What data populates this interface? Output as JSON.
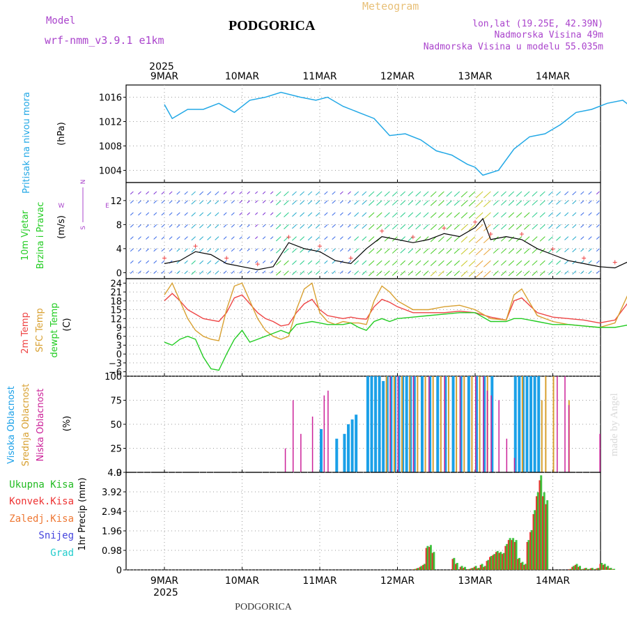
{
  "header": {
    "model_label": "Model",
    "model_name": "wrf-nmm_v3.9.1  e1km",
    "title": "PODGORICA",
    "product": "Meteogram",
    "lonlat": "lon,lat (19.25E, 42.39N)",
    "elevation": "Nadmorska Visina 49m",
    "model_elevation": "Nadmorska Visina u modelu 55.035m",
    "footer_title": "PODGORICA",
    "credit": "made by Angel",
    "year": "2025",
    "days": [
      "9MAR",
      "10MAR",
      "11MAR",
      "12MAR",
      "13MAR",
      "14MAR"
    ]
  },
  "colors": {
    "pressure": "#22a8e6",
    "temp2m": "#ee4444",
    "sfc": "#d8a030",
    "dewpt": "#22cc22",
    "cloud_high": "#1aa0e8",
    "cloud_mid": "#d8a030",
    "cloud_low": "#cc2299",
    "precip_total": "#22bb22",
    "precip_conv": "#ee3333",
    "snow": "#4444dd",
    "hail": "#22cccc",
    "wind_dir": "#aa44cc",
    "grid": "#999999"
  },
  "panels": {
    "pressure": {
      "ylabel_1": "Pritisak na nivou mora",
      "unit": "(hPa)"
    },
    "wind": {
      "ylabel_1": "10m Vjetar",
      "ylabel_2": "Brzina i Pravac",
      "unit": "(m/s)",
      "dir_n": "N",
      "dir_e": "E",
      "dir_w": "W",
      "dir_s": "S"
    },
    "temp": {
      "ylabel_1": "2m Temp",
      "ylabel_2": "SFC Temp",
      "ylabel_3": "dewpt Temp",
      "unit": "(C)"
    },
    "cloud": {
      "ylabel_1": "Visoka Oblacnost",
      "ylabel_2": "Srednja Oblacnost",
      "ylabel_3": "Niska Oblacnost",
      "unit": "(%)"
    },
    "precip": {
      "ylabel": "1hr Precip (mm)",
      "legend": [
        "Ukupna Kisa",
        "Konvek.Kisa",
        "Zaledj.Kisa",
        "Snijeg",
        "Grad"
      ]
    }
  },
  "chart_data": [
    {
      "type": "line",
      "name": "pressure",
      "ylabel": "Pritisak na nivou mora (hPa)",
      "yticks": [
        1004,
        1008,
        1012,
        1016
      ],
      "ylim": [
        1002,
        1018
      ],
      "x_days": [
        0,
        0.1,
        0.3,
        0.5,
        0.7,
        0.9,
        1.1,
        1.3,
        1.5,
        1.75,
        1.95,
        2.1,
        2.3,
        2.5,
        2.7,
        2.9,
        3.1,
        3.3,
        3.5,
        3.7,
        3.9,
        4.0,
        4.1,
        4.3,
        4.5,
        4.7,
        4.9,
        5.1,
        5.3,
        5.5,
        5.7,
        5.9,
        6.0,
        6.1
      ],
      "y": [
        1014.8,
        1012.5,
        1014.0,
        1014.0,
        1015.0,
        1013.5,
        1015.5,
        1016.0,
        1016.8,
        1016.0,
        1015.5,
        1016.0,
        1014.5,
        1013.5,
        1012.5,
        1009.7,
        1010.0,
        1009.0,
        1007.2,
        1006.5,
        1005.0,
        1004.5,
        1003.2,
        1004.0,
        1007.5,
        1009.5,
        1010.0,
        1011.5,
        1013.5,
        1014.0,
        1015.0,
        1015.5,
        1014.5,
        1013.3
      ]
    },
    {
      "type": "line",
      "name": "wind",
      "ylabel": "10m Vjetar Brzina i Pravac (m/s)",
      "yticks": [
        0,
        4,
        8,
        12
      ],
      "ylim": [
        -1,
        15
      ],
      "x_days": [
        0,
        0.2,
        0.4,
        0.6,
        0.8,
        1.0,
        1.2,
        1.4,
        1.6,
        1.8,
        2.0,
        2.2,
        2.4,
        2.6,
        2.8,
        3.0,
        3.2,
        3.4,
        3.6,
        3.8,
        4.0,
        4.1,
        4.2,
        4.4,
        4.6,
        4.8,
        5.0,
        5.2,
        5.4,
        5.6,
        5.8,
        6.0
      ],
      "y": [
        1.5,
        2.0,
        3.5,
        3.0,
        1.5,
        1.0,
        0.5,
        1.0,
        5.0,
        4.0,
        3.5,
        2.0,
        1.5,
        4.0,
        6.0,
        5.5,
        5.0,
        5.5,
        6.5,
        6.0,
        7.5,
        9.0,
        5.5,
        6.0,
        5.5,
        4.0,
        3.0,
        2.0,
        1.5,
        1.0,
        0.8,
        2.0
      ]
    },
    {
      "type": "line",
      "name": "temperature",
      "ylabel": "2m Temp / SFC Temp / dewpt Temp (C)",
      "yticks": [
        -6,
        -3,
        0,
        3,
        6,
        9,
        12,
        15,
        18,
        21,
        24
      ],
      "ylim": [
        -7.5,
        25.5
      ],
      "x_days": [
        0,
        0.1,
        0.2,
        0.3,
        0.4,
        0.5,
        0.6,
        0.7,
        0.8,
        0.9,
        1.0,
        1.1,
        1.2,
        1.3,
        1.4,
        1.5,
        1.6,
        1.7,
        1.8,
        1.9,
        2.0,
        2.1,
        2.2,
        2.3,
        2.4,
        2.5,
        2.6,
        2.7,
        2.8,
        2.9,
        3.0,
        3.2,
        3.4,
        3.6,
        3.8,
        4.0,
        4.2,
        4.4,
        4.5,
        4.6,
        4.8,
        5.0,
        5.2,
        5.4,
        5.6,
        5.8,
        6.0,
        6.1
      ],
      "series": [
        {
          "name": "2m Temp",
          "values": [
            18,
            20.5,
            18,
            15,
            13.5,
            12,
            11.5,
            11,
            14,
            19,
            20,
            17,
            14,
            12,
            11,
            9.5,
            10,
            14,
            17,
            18.5,
            15,
            13,
            12.5,
            12,
            12.5,
            12,
            11.8,
            16,
            18.5,
            17.5,
            16,
            14,
            14,
            14,
            14.5,
            14,
            12.5,
            11.5,
            18,
            19,
            14,
            12.5,
            12,
            11.5,
            10.5,
            11.5,
            18.5,
            20
          ]
        },
        {
          "name": "SFC Temp",
          "values": [
            20,
            24,
            18,
            12,
            8,
            6,
            5,
            4.5,
            15,
            23,
            24,
            18,
            12,
            8,
            6,
            5,
            6,
            15,
            22,
            24,
            14,
            11,
            10,
            11,
            10.5,
            10.5,
            10,
            18,
            23,
            21,
            18,
            15,
            15,
            16,
            16.5,
            15,
            12,
            11.5,
            20,
            22,
            13,
            11,
            10,
            9.5,
            9,
            10.5,
            22,
            24
          ]
        },
        {
          "name": "dewpt Temp",
          "values": [
            4,
            3,
            5,
            6,
            5,
            -1,
            -5,
            -5.5,
            0,
            5,
            8,
            4,
            5,
            6,
            7,
            8,
            7,
            10,
            10.5,
            11,
            10.5,
            10,
            10,
            10,
            10.5,
            9,
            8,
            11,
            12,
            11,
            12,
            12.5,
            13,
            13.5,
            14,
            14,
            11,
            11,
            12,
            12,
            11,
            10,
            10,
            9.5,
            9,
            9,
            10,
            9
          ]
        }
      ]
    },
    {
      "type": "bar",
      "name": "cloud_cover",
      "ylabel": "Visoka / Srednja / Niska Oblacnost (%)",
      "yticks": [
        0,
        25,
        50,
        75,
        100
      ],
      "ylim": [
        0,
        100
      ],
      "series": [
        {
          "name": "Visoka Oblacnost",
          "x_days": [
            2.0,
            2.2,
            2.3,
            2.35,
            2.4,
            2.45,
            2.6,
            2.65,
            2.7,
            2.75,
            2.8,
            2.85,
            2.9,
            2.95,
            3.0,
            3.05,
            3.1,
            3.15,
            3.2,
            3.3,
            3.4,
            3.5,
            3.6,
            3.7,
            3.8,
            3.9,
            4.0,
            4.1,
            4.2,
            4.5,
            4.55,
            4.6,
            4.65,
            4.7,
            4.75,
            4.8
          ],
          "values": [
            45,
            35,
            40,
            50,
            55,
            60,
            100,
            100,
            100,
            100,
            95,
            100,
            100,
            100,
            100,
            100,
            100,
            100,
            100,
            100,
            100,
            100,
            100,
            100,
            100,
            100,
            100,
            100,
            100,
            100,
            100,
            100,
            100,
            100,
            100,
            100
          ]
        },
        {
          "name": "Srednja Oblacnost",
          "x_days": [
            2.85,
            2.95,
            3.05,
            3.15,
            3.25,
            3.35,
            3.45,
            3.55,
            3.65,
            3.75,
            3.85,
            3.95,
            4.05,
            4.15,
            4.6,
            4.85,
            4.9,
            5.0,
            5.2
          ],
          "values": [
            100,
            100,
            100,
            100,
            100,
            100,
            100,
            100,
            100,
            100,
            100,
            100,
            100,
            100,
            100,
            75,
            100,
            100,
            75
          ]
        },
        {
          "name": "Niska Oblacnost",
          "x_days": [
            1.55,
            1.65,
            1.75,
            1.9,
            2.05,
            2.1,
            2.9,
            3.0,
            3.2,
            3.4,
            3.6,
            3.8,
            4.0,
            4.1,
            4.15,
            4.2,
            4.3,
            4.4,
            4.5,
            5.05,
            5.15,
            5.2,
            5.6
          ],
          "values": [
            25,
            75,
            40,
            58,
            80,
            85,
            100,
            100,
            100,
            100,
            100,
            100,
            100,
            100,
            85,
            80,
            75,
            35,
            15,
            100,
            100,
            70,
            40
          ]
        }
      ]
    },
    {
      "type": "bar",
      "name": "precipitation",
      "ylabel": "1hr Precip (mm)",
      "yticks": [
        0,
        0.98,
        1.96,
        2.94,
        3.92,
        4.9
      ],
      "ylim": [
        0,
        4.9
      ],
      "x_days": [
        3.2,
        3.24,
        3.28,
        3.32,
        3.36,
        3.4,
        3.44,
        3.7,
        3.74,
        3.8,
        3.84,
        3.9,
        3.94,
        3.98,
        4.02,
        4.06,
        4.1,
        4.14,
        4.18,
        4.22,
        4.26,
        4.3,
        4.34,
        4.38,
        4.42,
        4.46,
        4.5,
        4.54,
        4.58,
        4.62,
        4.66,
        4.7,
        4.74,
        4.78,
        4.82,
        4.86,
        4.9,
        5.2,
        5.24,
        5.28,
        5.32,
        5.36,
        5.4,
        5.44,
        5.48,
        5.52,
        5.56,
        5.6,
        5.64,
        5.68,
        5.72,
        5.76
      ],
      "series": [
        {
          "name": "Ukupna Kisa",
          "values": [
            0.05,
            0.1,
            0.2,
            0.3,
            1.2,
            1.25,
            0.9,
            0.6,
            0.35,
            0.2,
            0.15,
            0.05,
            0.1,
            0.2,
            0.1,
            0.3,
            0.2,
            0.5,
            0.7,
            0.8,
            0.95,
            0.9,
            0.85,
            1.3,
            1.6,
            1.6,
            1.5,
            0.6,
            0.4,
            0.3,
            1.5,
            2.0,
            3.0,
            3.9,
            4.75,
            3.9,
            3.5,
            0.05,
            0.2,
            0.3,
            0.2,
            0.05,
            0.1,
            0.05,
            0.1,
            0.05,
            0.1,
            0.35,
            0.3,
            0.2,
            0.1,
            0.05
          ]
        },
        {
          "name": "Konvek.Kisa",
          "values": [
            0.03,
            0.08,
            0.15,
            0.25,
            1.1,
            1.15,
            0.85,
            0.55,
            0.3,
            0.15,
            0.1,
            0.03,
            0.08,
            0.15,
            0.08,
            0.25,
            0.15,
            0.45,
            0.65,
            0.75,
            0.9,
            0.85,
            0.8,
            1.2,
            1.5,
            1.5,
            1.4,
            0.55,
            0.35,
            0.25,
            1.4,
            1.9,
            2.8,
            3.7,
            4.5,
            3.7,
            3.3,
            0.03,
            0.15,
            0.25,
            0.15,
            0.03,
            0.08,
            0.03,
            0.08,
            0.03,
            0.08,
            0.3,
            0.25,
            0.15,
            0.08,
            0.03
          ]
        }
      ]
    }
  ]
}
